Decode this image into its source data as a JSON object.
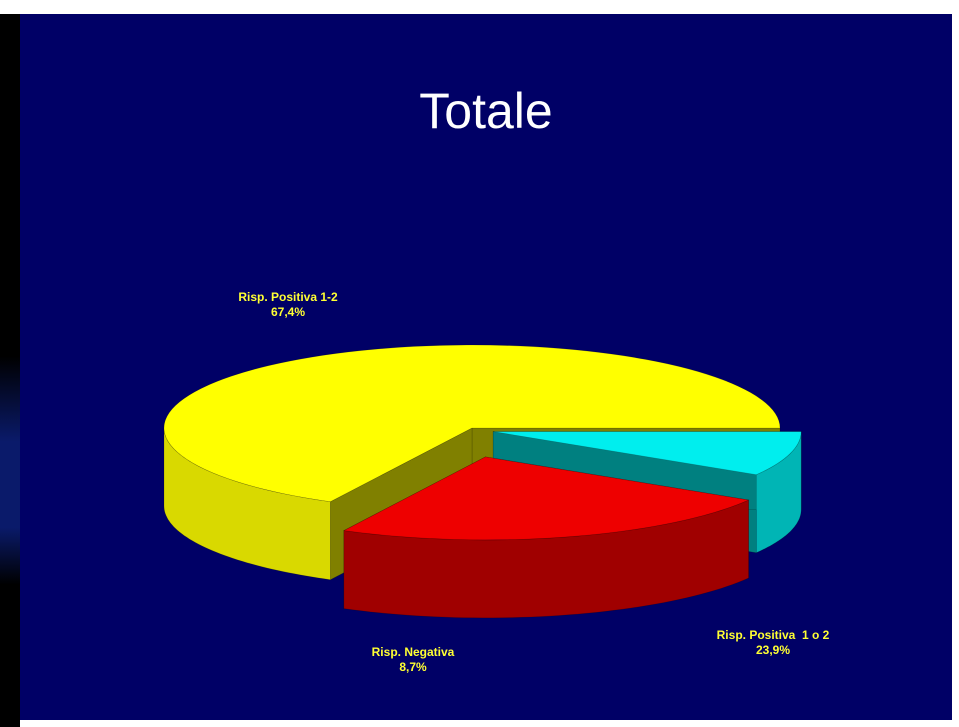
{
  "title": "Totale",
  "colors": {
    "background": "#000066",
    "title_text": "#ffffff",
    "label_text": "#ffff33"
  },
  "chart_data": {
    "type": "pie",
    "style": "3d-exploded",
    "title": "Totale",
    "slices": [
      {
        "label": "Risp. Positiva 1-2",
        "value": 67.4,
        "value_label": "67,4%",
        "color": "#ffff00",
        "side_color": "#d9d900",
        "dark_color": "#808000"
      },
      {
        "label": "Risp. Positiva  1 o 2",
        "value": 23.9,
        "value_label": "23,9%",
        "color": "#ee0000",
        "side_color": "#a00000",
        "dark_color": "#600000"
      },
      {
        "label": "Risp. Negativa",
        "value": 8.7,
        "value_label": "8,7%",
        "color": "#00eeee",
        "side_color": "#00b5b5",
        "dark_color": "#008080"
      }
    ]
  }
}
